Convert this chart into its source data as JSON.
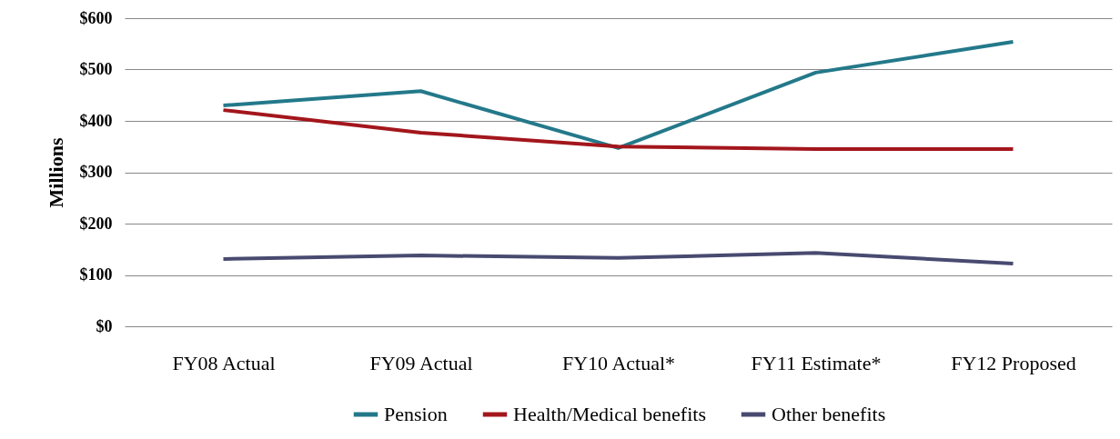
{
  "chart_data": {
    "type": "line",
    "ylabel": "Millions",
    "categories": [
      "FY08 Actual",
      "FY09 Actual",
      "FY10 Actual*",
      "FY11 Estimate*",
      "FY12 Proposed"
    ],
    "series": [
      {
        "name": "Pension",
        "color": "#23798a",
        "values": [
          430,
          458,
          347,
          494,
          554
        ]
      },
      {
        "name": "Health/Medical benefits",
        "color": "#a3161c",
        "values": [
          421,
          377,
          350,
          345,
          345
        ]
      },
      {
        "name": "Other benefits",
        "color": "#484a70",
        "values": [
          131,
          138,
          133,
          143,
          122
        ]
      }
    ],
    "ylim": [
      0,
      600
    ],
    "yticks": [
      {
        "value": 0,
        "label": "$0"
      },
      {
        "value": 100,
        "label": "$100"
      },
      {
        "value": 200,
        "label": "$200"
      },
      {
        "value": 300,
        "label": "$300"
      },
      {
        "value": 400,
        "label": "$400"
      },
      {
        "value": 500,
        "label": "$500"
      },
      {
        "value": 600,
        "label": "$600"
      }
    ],
    "grid": "y",
    "legend": "bottom",
    "marker": "none",
    "line_style": "solid"
  }
}
